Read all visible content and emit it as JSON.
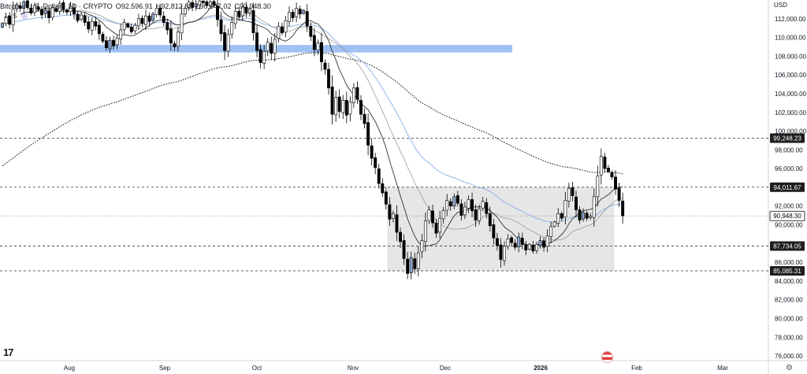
{
  "header": {
    "symbol": "Bitcoin / U.S. Dollar · 1D · CRYPTO",
    "open": "O92,596.91",
    "high": "H92,812.85",
    "low": "L90,647.02",
    "close": "C90,948.30",
    "indicator_count": "5"
  },
  "currency": "USD",
  "logo_text": "17",
  "colors": {
    "bull": "#ffffff",
    "bull_accent": "#8ea7d4",
    "bear": "#000000",
    "zone_fill": "#e6e6e6",
    "resistance_band": "#9fc2f3",
    "sma_black": "#1b1b1b",
    "sma_gray": "#9a9a9a",
    "ema_blue": "#89aee8"
  },
  "chart_data": {
    "type": "candlestick",
    "title": "",
    "ylim": [
      75500,
      114000
    ],
    "y_ticks": [
      76000,
      78000,
      80000,
      82000,
      84000,
      86000,
      88000,
      90000,
      92000,
      94000,
      96000,
      98000,
      100000,
      102000,
      104000,
      106000,
      108000,
      110000,
      112000
    ],
    "x_month_labels": [
      "Aug",
      "Sep",
      "Oct",
      "Nov",
      "Dec",
      "2026",
      "Feb",
      "Mar"
    ],
    "price_labels": [
      {
        "value": 99248.23,
        "text": "99,248.23"
      },
      {
        "value": 94011.67,
        "text": "94,011.67"
      },
      {
        "value": 90948.3,
        "text": "90,948.30",
        "current": true
      },
      {
        "value": 87734.05,
        "text": "87,734.05"
      },
      {
        "value": 85085.31,
        "text": "85,085.31"
      }
    ],
    "horizontal_levels": [
      99248.23,
      94011.67,
      87734.05,
      85085.31
    ],
    "current_price": 90948.3,
    "resistance_band": {
      "low": 108400,
      "high": 109200
    },
    "range_box": {
      "low": 85085.31,
      "high": 94011.67,
      "start": "Nov 20",
      "end": "Jan 23"
    },
    "candles_close": [
      111500,
      112200,
      111400,
      113000,
      113500,
      113100,
      113800,
      113200,
      112600,
      113400,
      113000,
      112400,
      112900,
      112100,
      113200,
      112800,
      113600,
      113000,
      112700,
      113300,
      112500,
      111800,
      112400,
      111600,
      110900,
      111700,
      111200,
      110400,
      109600,
      108900,
      109700,
      109100,
      109900,
      110800,
      111600,
      111100,
      110600,
      111300,
      112000,
      111500,
      112300,
      111700,
      112500,
      113100,
      112400,
      111600,
      110800,
      109400,
      109000,
      110600,
      112500,
      113100,
      113800,
      113200,
      113600,
      113900,
      113700,
      113400,
      113800,
      113500,
      111900,
      110400,
      108600,
      110300,
      111600,
      112800,
      112200,
      113300,
      112600,
      113000,
      110500,
      108600,
      107300,
      108500,
      109500,
      108300,
      109800,
      111200,
      110500,
      111800,
      112700,
      112100,
      113100,
      112500,
      112900,
      111200,
      110100,
      108700,
      109400,
      107400,
      106600,
      104600,
      101800,
      103600,
      102100,
      103300,
      101700,
      103100,
      104600,
      103400,
      101800,
      100800,
      98500,
      97100,
      96100,
      94400,
      93400,
      92200,
      90600,
      91200,
      89200,
      88200,
      86400,
      84800,
      86500,
      85300,
      87000,
      88300,
      90400,
      91600,
      90200,
      89100,
      90700,
      91500,
      92600,
      92000,
      93000,
      92300,
      91000,
      91900,
      92700,
      91500,
      90500,
      91700,
      92500,
      91200,
      89900,
      88600,
      87800,
      86300,
      87700,
      88500,
      88100,
      87600,
      88700,
      87900,
      87300,
      87900,
      87200,
      87900,
      88300,
      87600,
      88800,
      89800,
      90300,
      91200,
      90700,
      92600,
      93900,
      93100,
      91600,
      90500,
      91300,
      90700,
      90900,
      93000,
      95200,
      97300,
      96000,
      95700,
      95100,
      93800,
      92600,
      90950
    ],
    "moving_averages": [
      {
        "kind": "sma_200",
        "style": "dotted",
        "points_ref": "computed"
      },
      {
        "kind": "ema_50",
        "style": "blue",
        "points_ref": "computed"
      },
      {
        "kind": "sma_20",
        "style": "gray",
        "points_ref": "computed"
      },
      {
        "kind": "sma_10",
        "style": "black",
        "points_ref": "computed"
      }
    ]
  }
}
